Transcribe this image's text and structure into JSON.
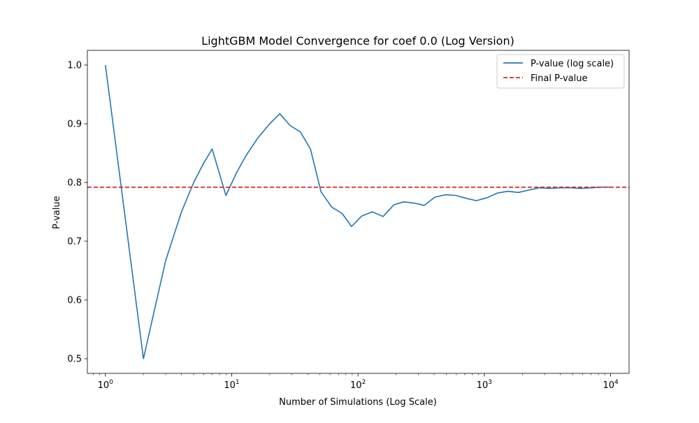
{
  "chart_data": {
    "type": "line",
    "title": "LightGBM Model Convergence for coef 0.0 (Log Version)",
    "xlabel": "Number of Simulations (Log Scale)",
    "ylabel": "P-value",
    "x_scale": "log",
    "xlim": [
      0.72,
      14000
    ],
    "ylim": [
      0.475,
      1.025
    ],
    "x_ticks": [
      {
        "value": 1,
        "base": "10",
        "exp": "0"
      },
      {
        "value": 10,
        "base": "10",
        "exp": "1"
      },
      {
        "value": 100,
        "base": "10",
        "exp": "2"
      },
      {
        "value": 1000,
        "base": "10",
        "exp": "3"
      },
      {
        "value": 10000,
        "base": "10",
        "exp": "4"
      }
    ],
    "y_ticks": [
      "0.5",
      "0.6",
      "0.7",
      "0.8",
      "0.9",
      "1.0"
    ],
    "grid": false,
    "legend_position": "top-right",
    "series": [
      {
        "name": "P-value (log scale)",
        "color": "#1f77b4",
        "style": "solid",
        "x": [
          1,
          2,
          3,
          4,
          5,
          6,
          7,
          9,
          11,
          13,
          16,
          20,
          24,
          29,
          35,
          42,
          51,
          62,
          75,
          89,
          107,
          130,
          158,
          192,
          230,
          276,
          335,
          405,
          491,
          595,
          720,
          865,
          1050,
          1270,
          1540,
          1860,
          2250,
          2720,
          3300,
          4000,
          4840,
          5860,
          7100,
          8600,
          10000
        ],
        "y": [
          1.0,
          0.5,
          0.667,
          0.75,
          0.8,
          0.833,
          0.857,
          0.778,
          0.818,
          0.846,
          0.875,
          0.9,
          0.917,
          0.897,
          0.886,
          0.857,
          0.784,
          0.758,
          0.747,
          0.725,
          0.743,
          0.75,
          0.742,
          0.762,
          0.767,
          0.765,
          0.761,
          0.775,
          0.779,
          0.778,
          0.773,
          0.769,
          0.774,
          0.782,
          0.785,
          0.783,
          0.787,
          0.791,
          0.79,
          0.791,
          0.791,
          0.79,
          0.791,
          0.792,
          0.792
        ]
      },
      {
        "name": "Final P-value",
        "color": "#d62728",
        "style": "dashed",
        "y_constant": 0.792
      }
    ]
  }
}
